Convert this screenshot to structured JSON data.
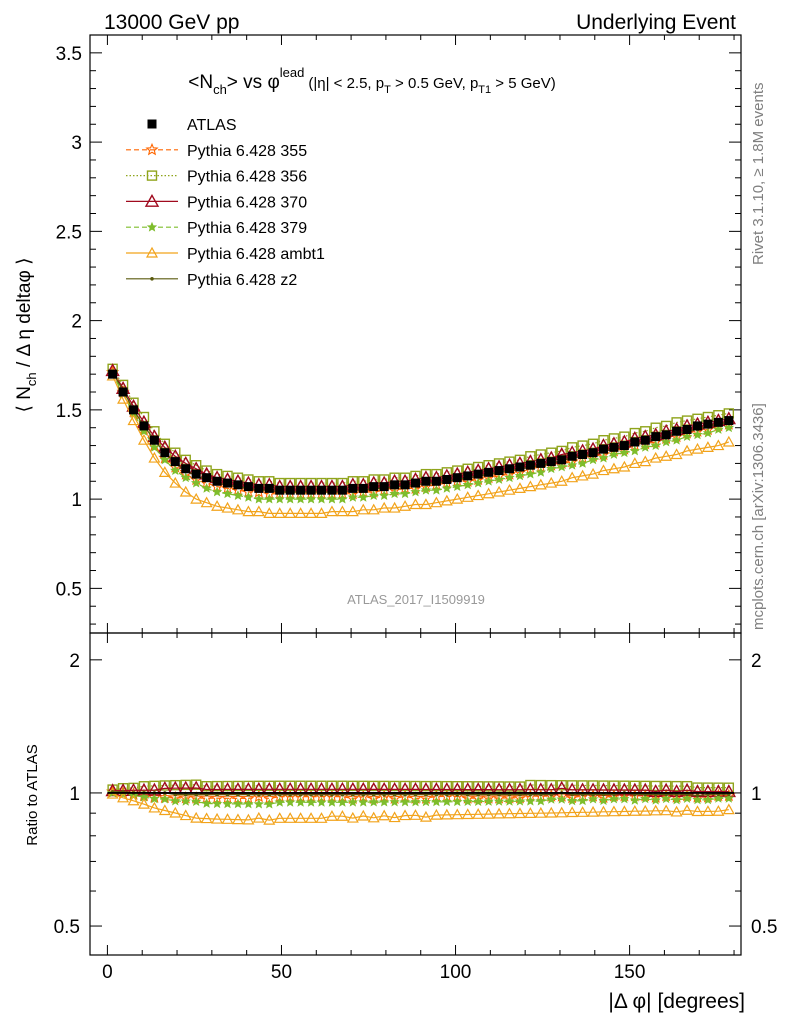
{
  "header": {
    "left": "13000 GeV pp",
    "right": "Underlying Event"
  },
  "title": {
    "part1": "<N",
    "part1_sub": "ch",
    "part2": "> vs ",
    "phi": "φ",
    "phi_sup": "lead",
    "cuts": "(|η| < 2.5, p",
    "cuts_sub1": "T",
    "cuts_mid": " > 0.5 GeV, p",
    "cuts_sub2": "T1",
    "cuts_end": " > 5 GeV)"
  },
  "side_labels": {
    "rivet": "Rivet 3.1.10, ≥ 1.8M events",
    "mcplots": "mcplots.cern.ch [arXiv:1306.3436]"
  },
  "analysis_id": "ATLAS_2017_I1509919",
  "ylabel_main": {
    "pre": "⟨ N",
    "sub": "ch",
    "post": " / Δ η deltaφ ⟩"
  },
  "ylabel_ratio": "Ratio to ATLAS",
  "xlabel": "|Δ φ| [degrees]",
  "chart_data": [
    {
      "type": "line",
      "panel": "main",
      "xlim": [
        -5,
        182
      ],
      "ylim": [
        0.25,
        3.6
      ],
      "x_ticks": [
        0,
        50,
        100,
        150
      ],
      "y_ticks": [
        0.5,
        1,
        1.5,
        2,
        2.5,
        3,
        3.5
      ],
      "x_count": 60,
      "x_start": 1.5,
      "x_step": 3,
      "legend_position": "top-left",
      "series": [
        {
          "name": "ATLAS",
          "color": "#000000",
          "marker": "square-filled",
          "dash": "none",
          "values": [
            1.7,
            1.6,
            1.5,
            1.41,
            1.33,
            1.26,
            1.21,
            1.17,
            1.14,
            1.12,
            1.1,
            1.09,
            1.08,
            1.07,
            1.06,
            1.06,
            1.05,
            1.05,
            1.05,
            1.05,
            1.05,
            1.05,
            1.05,
            1.06,
            1.06,
            1.07,
            1.07,
            1.08,
            1.08,
            1.09,
            1.1,
            1.1,
            1.11,
            1.12,
            1.13,
            1.14,
            1.15,
            1.16,
            1.17,
            1.18,
            1.19,
            1.2,
            1.21,
            1.22,
            1.24,
            1.25,
            1.26,
            1.28,
            1.29,
            1.3,
            1.32,
            1.33,
            1.35,
            1.36,
            1.38,
            1.39,
            1.41,
            1.42,
            1.43,
            1.44
          ]
        },
        {
          "name": "Pythia 6.428 355",
          "color": "#ff6600",
          "marker": "star",
          "dash": "5,3",
          "values": [
            1.71,
            1.6,
            1.49,
            1.39,
            1.3,
            1.23,
            1.18,
            1.14,
            1.11,
            1.09,
            1.07,
            1.06,
            1.05,
            1.04,
            1.04,
            1.03,
            1.03,
            1.03,
            1.03,
            1.03,
            1.03,
            1.03,
            1.03,
            1.03,
            1.04,
            1.04,
            1.05,
            1.05,
            1.06,
            1.06,
            1.07,
            1.08,
            1.09,
            1.1,
            1.1,
            1.11,
            1.12,
            1.13,
            1.14,
            1.15,
            1.17,
            1.18,
            1.19,
            1.2,
            1.21,
            1.23,
            1.24,
            1.25,
            1.27,
            1.28,
            1.3,
            1.31,
            1.32,
            1.34,
            1.35,
            1.37,
            1.38,
            1.39,
            1.41,
            1.42
          ]
        },
        {
          "name": "Pythia 6.428 356",
          "color": "#8fa41b",
          "marker": "square-open",
          "dash": "1.5,2",
          "values": [
            1.73,
            1.64,
            1.54,
            1.46,
            1.38,
            1.31,
            1.26,
            1.22,
            1.19,
            1.16,
            1.14,
            1.13,
            1.12,
            1.11,
            1.1,
            1.1,
            1.09,
            1.09,
            1.09,
            1.09,
            1.09,
            1.09,
            1.09,
            1.1,
            1.1,
            1.11,
            1.11,
            1.12,
            1.12,
            1.13,
            1.14,
            1.14,
            1.15,
            1.16,
            1.17,
            1.18,
            1.19,
            1.2,
            1.21,
            1.22,
            1.24,
            1.25,
            1.26,
            1.27,
            1.29,
            1.3,
            1.31,
            1.33,
            1.34,
            1.35,
            1.37,
            1.38,
            1.4,
            1.41,
            1.43,
            1.44,
            1.45,
            1.46,
            1.47,
            1.48
          ]
        },
        {
          "name": "Pythia 6.428 370",
          "color": "#a00a1e",
          "marker": "triangle-open",
          "dash": "none",
          "values": [
            1.72,
            1.62,
            1.52,
            1.43,
            1.35,
            1.29,
            1.24,
            1.2,
            1.17,
            1.14,
            1.12,
            1.11,
            1.1,
            1.09,
            1.08,
            1.08,
            1.07,
            1.07,
            1.07,
            1.07,
            1.07,
            1.07,
            1.07,
            1.08,
            1.08,
            1.09,
            1.09,
            1.1,
            1.1,
            1.11,
            1.12,
            1.12,
            1.13,
            1.14,
            1.15,
            1.16,
            1.17,
            1.18,
            1.19,
            1.2,
            1.21,
            1.22,
            1.23,
            1.25,
            1.26,
            1.27,
            1.28,
            1.3,
            1.31,
            1.32,
            1.34,
            1.35,
            1.36,
            1.38,
            1.39,
            1.41,
            1.42,
            1.43,
            1.44,
            1.45
          ]
        },
        {
          "name": "Pythia 6.428 379",
          "color": "#7ebd2c",
          "marker": "star-small",
          "dash": "5,3",
          "values": [
            1.7,
            1.59,
            1.48,
            1.38,
            1.29,
            1.22,
            1.16,
            1.12,
            1.09,
            1.06,
            1.04,
            1.03,
            1.02,
            1.01,
            1.0,
            1.0,
            1.0,
            1.0,
            1.0,
            1.0,
            1.0,
            1.0,
            1.0,
            1.01,
            1.01,
            1.02,
            1.02,
            1.03,
            1.03,
            1.04,
            1.05,
            1.05,
            1.06,
            1.07,
            1.08,
            1.09,
            1.1,
            1.11,
            1.12,
            1.13,
            1.14,
            1.15,
            1.17,
            1.18,
            1.19,
            1.2,
            1.22,
            1.23,
            1.25,
            1.26,
            1.27,
            1.29,
            1.3,
            1.32,
            1.33,
            1.35,
            1.36,
            1.37,
            1.39,
            1.4
          ]
        },
        {
          "name": "Pythia 6.428 ambt1",
          "color": "#f2a31b",
          "marker": "triangle-open-small",
          "dash": "none",
          "values": [
            1.69,
            1.56,
            1.44,
            1.33,
            1.23,
            1.15,
            1.09,
            1.04,
            1.0,
            0.98,
            0.96,
            0.95,
            0.94,
            0.93,
            0.93,
            0.92,
            0.92,
            0.92,
            0.92,
            0.92,
            0.92,
            0.93,
            0.93,
            0.93,
            0.94,
            0.94,
            0.95,
            0.95,
            0.96,
            0.97,
            0.97,
            0.98,
            0.99,
            1.0,
            1.01,
            1.02,
            1.03,
            1.04,
            1.05,
            1.06,
            1.07,
            1.08,
            1.09,
            1.1,
            1.12,
            1.13,
            1.14,
            1.16,
            1.17,
            1.18,
            1.2,
            1.21,
            1.23,
            1.24,
            1.25,
            1.27,
            1.28,
            1.29,
            1.3,
            1.32
          ]
        },
        {
          "name": "Pythia 6.428 z2",
          "color": "#5a5a0e",
          "marker": "dot",
          "dash": "none",
          "values": [
            1.71,
            1.61,
            1.5,
            1.41,
            1.33,
            1.26,
            1.2,
            1.16,
            1.13,
            1.11,
            1.09,
            1.08,
            1.07,
            1.06,
            1.05,
            1.05,
            1.04,
            1.04,
            1.04,
            1.04,
            1.04,
            1.04,
            1.04,
            1.05,
            1.05,
            1.06,
            1.06,
            1.07,
            1.07,
            1.08,
            1.09,
            1.09,
            1.1,
            1.11,
            1.12,
            1.13,
            1.14,
            1.15,
            1.16,
            1.17,
            1.18,
            1.19,
            1.2,
            1.22,
            1.23,
            1.24,
            1.25,
            1.27,
            1.28,
            1.3,
            1.31,
            1.32,
            1.34,
            1.35,
            1.37,
            1.38,
            1.39,
            1.41,
            1.42,
            1.43
          ]
        }
      ]
    },
    {
      "type": "line",
      "panel": "ratio",
      "xlim": [
        -5,
        182
      ],
      "ylim": [
        0.43,
        2.3
      ],
      "log_scale_y": true,
      "x_ticks": [
        0,
        50,
        100,
        150
      ],
      "y_ticks": [
        0.5,
        1,
        2
      ],
      "reference_line": 1
    }
  ],
  "colors": {
    "frame": "#000000",
    "side_text": "#7f7f7f",
    "analysis_id": "#999999"
  }
}
